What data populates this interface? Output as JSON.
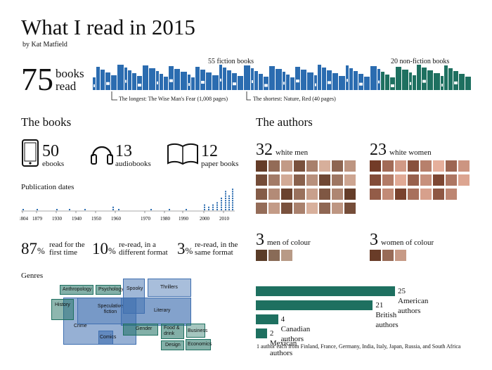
{
  "header": {
    "title": "What I read in 2015",
    "byline": "by Kat Matfield"
  },
  "total": {
    "count": "75",
    "label_line1": "books",
    "label_line2": "read"
  },
  "shelf": {
    "fiction_label": "55 fiction books",
    "nonfiction_label": "20 non-fiction books",
    "longest_note": "The longest: The Wise Man's Fear (1,008 pages)",
    "shortest_note": "The shortest: Nature, Red (40 pages)",
    "fiction_count": 55,
    "nonfiction_count": 20,
    "colors": {
      "fiction": "#2b6cb0",
      "nonfiction": "#1e7060"
    }
  },
  "books_section": {
    "heading": "The books",
    "formats": [
      {
        "icon": "tablet-icon",
        "count": "50",
        "label": "ebooks"
      },
      {
        "icon": "headphones-icon",
        "count": "13",
        "label": "audiobooks"
      },
      {
        "icon": "open-book-icon",
        "count": "12",
        "label": "paper books"
      }
    ],
    "pubdates": {
      "heading": "Publication dates",
      "ticks": [
        "1804",
        "1879",
        "1930",
        "1940",
        "1950",
        "1960",
        "1970",
        "1980",
        "1990",
        "2000",
        "2010"
      ]
    },
    "percents": [
      {
        "value": "87",
        "sym": "%",
        "line1": "read for the",
        "line2": "first time"
      },
      {
        "value": "10",
        "sym": "%",
        "line1": "re-read, in a",
        "line2": "different format"
      },
      {
        "value": "3",
        "sym": "%",
        "line1": "re-read, in the",
        "line2": "same format"
      }
    ]
  },
  "genres": {
    "heading": "Genres",
    "items": [
      "Anthropology",
      "Psychology",
      "Spooky",
      "Thrillers",
      "History",
      "Speculative fiction",
      "Literary",
      "Crime",
      "Comics",
      "Gender",
      "Food & drink",
      "Business",
      "Design",
      "Economics"
    ]
  },
  "authors": {
    "heading": "The authors",
    "groups": [
      {
        "count": "32",
        "label": "white men"
      },
      {
        "count": "23",
        "label": "white women"
      },
      {
        "count": "3",
        "label": "men of colour"
      },
      {
        "count": "3",
        "label": "women of colour"
      }
    ],
    "nationalities": [
      {
        "label": "25 American authors",
        "value": 25
      },
      {
        "label": "21 British authors",
        "value": 21
      },
      {
        "label": "4 Canadian authors",
        "value": 4
      },
      {
        "label": "2 Mexican authors",
        "value": 2
      }
    ],
    "footnote": "1 author each from Finland, France, Germany, India, Italy, Japan, Russia, and South Africa"
  }
}
